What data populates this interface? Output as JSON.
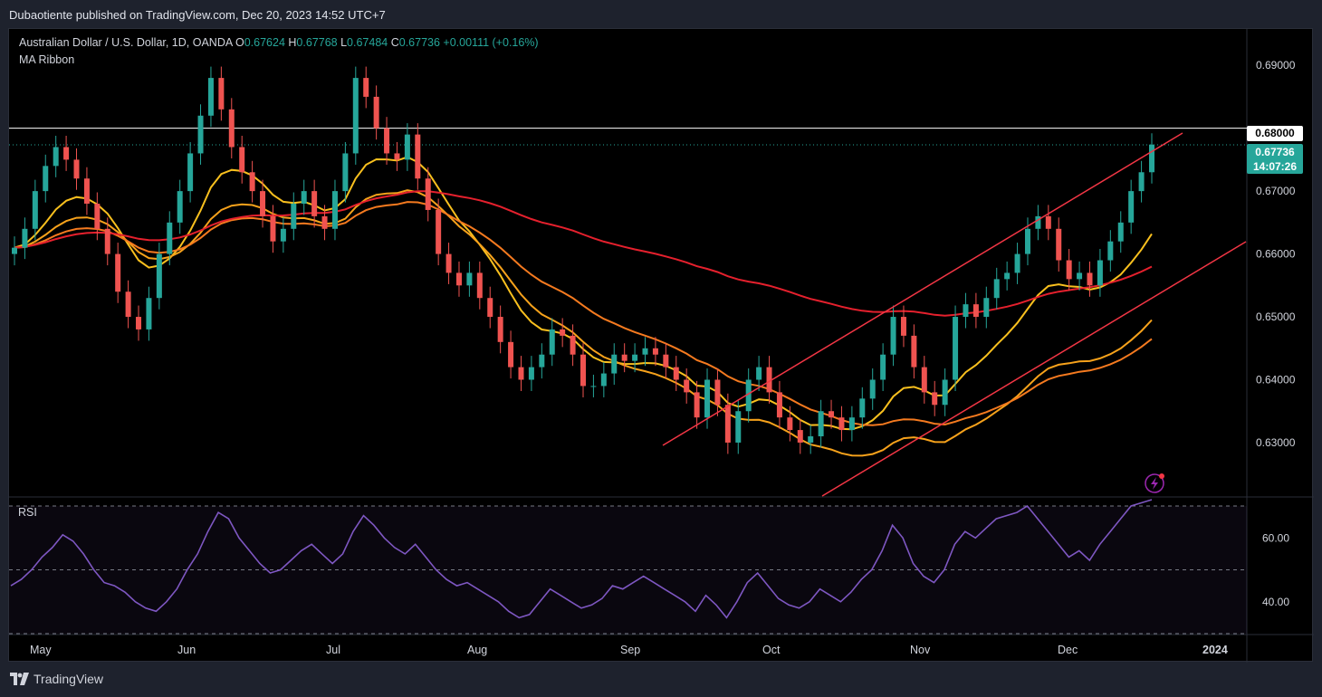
{
  "header": {
    "published_text": "Dubaotiente published on TradingView.com, Dec 20, 2023 14:52 UTC+7"
  },
  "legend": {
    "symbol": "Australian Dollar / U.S. Dollar, 1D, OANDA",
    "o_label": "O",
    "o_value": "0.67624",
    "h_label": "H",
    "h_value": "0.67768",
    "l_label": "L",
    "l_value": "0.67484",
    "c_label": "C",
    "c_value": "0.67736",
    "change": "+0.00111 (+0.16%)",
    "indicator": "MA Ribbon",
    "rsi_label": "RSI"
  },
  "price_axis": {
    "level_label": "0.68000",
    "last_price": "0.67736",
    "countdown": "14:07:26"
  },
  "footer": {
    "brand": "TradingView"
  },
  "colors": {
    "up": "#26a69a",
    "down": "#ef5350",
    "ma_fast": "#f9c01e",
    "ma_mid": "#f7a21b",
    "ma_slow": "#f57a1f",
    "ma_200": "#e5202d",
    "channel": "#f23645",
    "rsi": "#7e57c2"
  },
  "chart_data": [
    {
      "type": "candlestick",
      "title": "Australian Dollar / U.S. Dollar, 1D, OANDA",
      "x_tick_labels": [
        "May",
        "Jun",
        "Jul",
        "Aug",
        "Sep",
        "Oct",
        "Nov",
        "Dec",
        "2024"
      ],
      "y_tick_labels": [
        "0.69000",
        "0.67000",
        "0.66000",
        "0.65000",
        "0.64000",
        "0.63000"
      ],
      "ylim": [
        0.6215,
        0.6955
      ],
      "horizontal_level": 0.68,
      "last_close": 0.67736,
      "approx_closes": [
        0.661,
        0.664,
        0.67,
        0.674,
        0.677,
        0.675,
        0.672,
        0.668,
        0.664,
        0.66,
        0.654,
        0.65,
        0.648,
        0.653,
        0.66,
        0.665,
        0.67,
        0.676,
        0.682,
        0.688,
        0.683,
        0.677,
        0.673,
        0.67,
        0.666,
        0.662,
        0.664,
        0.668,
        0.67,
        0.666,
        0.664,
        0.67,
        0.676,
        0.688,
        0.685,
        0.68,
        0.676,
        0.675,
        0.679,
        0.672,
        0.667,
        0.66,
        0.657,
        0.655,
        0.657,
        0.653,
        0.65,
        0.646,
        0.642,
        0.64,
        0.642,
        0.644,
        0.648,
        0.647,
        0.644,
        0.639,
        0.639,
        0.641,
        0.644,
        0.643,
        0.644,
        0.645,
        0.644,
        0.642,
        0.64,
        0.638,
        0.634,
        0.64,
        0.636,
        0.63,
        0.635,
        0.64,
        0.642,
        0.638,
        0.634,
        0.632,
        0.63,
        0.631,
        0.635,
        0.634,
        0.632,
        0.634,
        0.637,
        0.64,
        0.644,
        0.65,
        0.647,
        0.642,
        0.638,
        0.636,
        0.64,
        0.65,
        0.652,
        0.65,
        0.653,
        0.656,
        0.657,
        0.66,
        0.664,
        0.666,
        0.664,
        0.659,
        0.656,
        0.657,
        0.655,
        0.659,
        0.662,
        0.665,
        0.67,
        0.673,
        0.6774
      ],
      "moving_averages": [
        {
          "color": "#f9c01e",
          "end_value": 0.6632
        },
        {
          "color": "#f7a21b",
          "end_value": 0.6495
        },
        {
          "color": "#f57a1f",
          "end_value": 0.6465
        },
        {
          "color": "#e5202d",
          "end_value": 0.658
        }
      ],
      "channel": {
        "upper": [
          [
            0.0,
            0.629
          ],
          [
            1.0,
            0.68
          ]
        ],
        "lower": [
          [
            0.0,
            0.6215
          ],
          [
            1.0,
            0.663
          ]
        ]
      }
    },
    {
      "type": "line",
      "title": "RSI",
      "y_tick_labels": [
        "60.00",
        "40.00"
      ],
      "ylim": [
        30,
        72
      ],
      "bands": [
        70,
        50,
        30
      ],
      "values": [
        45,
        47,
        50,
        54,
        57,
        61,
        59,
        55,
        50,
        46,
        45,
        43,
        40,
        38,
        37,
        40,
        44,
        50,
        55,
        62,
        68,
        66,
        60,
        56,
        52,
        49,
        50,
        53,
        56,
        58,
        55,
        52,
        55,
        62,
        67,
        64,
        60,
        57,
        55,
        58,
        54,
        50,
        47,
        45,
        46,
        44,
        42,
        40,
        37,
        35,
        36,
        40,
        44,
        42,
        40,
        38,
        39,
        41,
        45,
        44,
        46,
        48,
        46,
        44,
        42,
        40,
        37,
        42,
        39,
        35,
        40,
        46,
        49,
        45,
        41,
        39,
        38,
        40,
        44,
        42,
        40,
        43,
        47,
        50,
        56,
        64,
        60,
        52,
        48,
        46,
        50,
        58,
        62,
        60,
        63,
        66,
        67,
        68,
        70,
        66,
        62,
        58,
        54,
        56,
        53,
        58,
        62,
        66,
        70,
        71,
        72
      ]
    }
  ]
}
